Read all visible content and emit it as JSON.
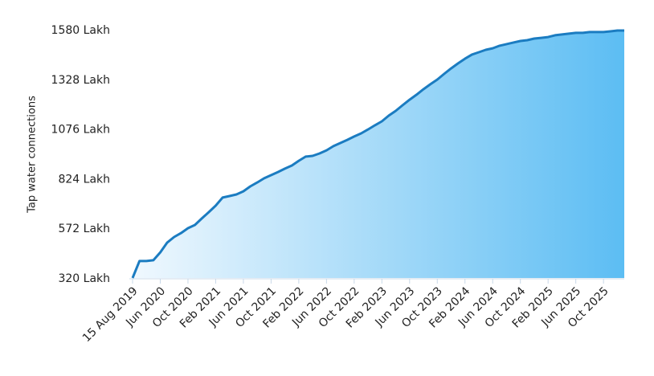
{
  "chart_data": {
    "type": "area",
    "y_label": "Tap water connections",
    "categories": [
      "15 Aug 2019",
      null,
      null,
      null,
      "Jun 2020",
      null,
      null,
      null,
      "Oct 2020",
      null,
      null,
      null,
      "Feb 2021",
      null,
      null,
      null,
      "Jun 2021",
      null,
      null,
      null,
      "Oct 2021",
      null,
      null,
      null,
      "Feb 2022",
      null,
      null,
      null,
      "Jun 2022",
      null,
      null,
      null,
      "Oct 2022",
      null,
      null,
      null,
      "Feb 2023",
      null,
      null,
      null,
      "Jun 2023",
      null,
      null,
      null,
      "Oct 2023",
      null,
      null,
      null,
      "Feb 2024",
      null,
      null,
      null,
      "Jun 2024",
      null,
      null,
      null,
      "Oct 2024",
      null,
      null,
      null,
      "Feb 2025",
      null,
      null,
      null,
      "Jun 2025",
      null,
      null,
      null,
      "Oct 2025",
      null,
      null,
      null
    ],
    "values": [
      320,
      406,
      406,
      410,
      450,
      500,
      528,
      548,
      573,
      589,
      622,
      654,
      687,
      728,
      736,
      744,
      760,
      785,
      805,
      826,
      842,
      858,
      875,
      891,
      915,
      936,
      940,
      952,
      968,
      989,
      1005,
      1021,
      1038,
      1054,
      1074,
      1095,
      1115,
      1144,
      1168,
      1197,
      1225,
      1250,
      1278,
      1303,
      1327,
      1356,
      1384,
      1409,
      1433,
      1454,
      1466,
      1478,
      1486,
      1499,
      1507,
      1515,
      1523,
      1527,
      1535,
      1539,
      1543,
      1552,
      1556,
      1560,
      1564,
      1564,
      1568,
      1568,
      1568,
      1572,
      1576,
      1576
    ],
    "color": "#1b7cc1",
    "area_gradient": [
      "#f0f8fe",
      "#5cbdf3"
    ],
    "ylim": [
      320,
      1580
    ],
    "yticks": [
      {
        "value": 320,
        "label": "320 Lakh"
      },
      {
        "value": 572,
        "label": "572 Lakh"
      },
      {
        "value": 824,
        "label": "824 Lakh"
      },
      {
        "value": 1076,
        "label": "1076 Lakh"
      },
      {
        "value": 1328,
        "label": "1328 Lakh"
      },
      {
        "value": 1580,
        "label": "1580 Lakh"
      }
    ],
    "grid": false
  }
}
